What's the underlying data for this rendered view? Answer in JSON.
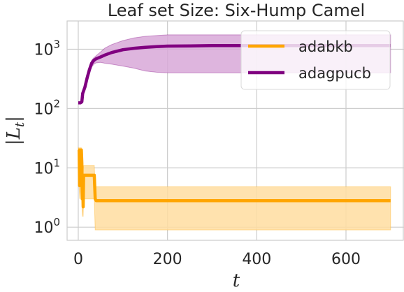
{
  "chart_data": {
    "type": "line",
    "title": "Leaf set Size: Six-Hump Camel",
    "xlabel": "t",
    "ylabel": "|L_t|",
    "x_ticks": [
      "0",
      "200",
      "400",
      "600"
    ],
    "x_tick_values": [
      0,
      200,
      400,
      600
    ],
    "y_scale": "log",
    "y_tick_exponents": [
      0,
      1,
      2,
      3
    ],
    "xlim": [
      -25,
      730
    ],
    "ylim": [
      0.6,
      3000
    ],
    "grid": true,
    "legend_position": "top-right",
    "series": [
      {
        "name": "adabkb",
        "color": "#ffa500",
        "band_color": "#ffdda0",
        "x": [
          0,
          2,
          3,
          4,
          5,
          6,
          7,
          8,
          9,
          10,
          11,
          12,
          14,
          16,
          20,
          25,
          30,
          34,
          36,
          38,
          40,
          100,
          200,
          300,
          400,
          500,
          600,
          700
        ],
        "y": [
          20,
          20,
          5,
          14,
          20,
          6,
          20,
          12,
          3,
          5,
          2.2,
          7.5,
          7.5,
          7.5,
          7.5,
          7.5,
          7.5,
          7.5,
          7.5,
          3,
          2.8,
          2.8,
          2.8,
          2.8,
          2.8,
          2.8,
          2.8,
          2.8
        ],
        "lower": [
          5,
          5,
          3,
          4,
          5,
          3,
          5,
          3,
          1.5,
          2,
          1.5,
          3,
          3,
          3,
          3,
          3,
          3,
          3,
          3,
          0.9,
          0.9,
          0.9,
          0.9,
          0.9,
          0.9,
          0.9,
          0.9,
          0.9
        ],
        "upper": [
          22,
          22,
          20,
          22,
          22,
          20,
          22,
          20,
          10,
          12,
          8,
          11,
          11,
          11,
          11,
          11,
          11,
          11,
          11,
          4.8,
          4.8,
          4.8,
          4.8,
          4.8,
          4.8,
          4.8,
          4.8,
          4.8
        ]
      },
      {
        "name": "adagpucb",
        "color": "#800080",
        "band_color": "#d8a8d8",
        "x": [
          0,
          5,
          8,
          10,
          15,
          20,
          25,
          30,
          35,
          40,
          50,
          60,
          75,
          100,
          125,
          150,
          175,
          200,
          250,
          300,
          400,
          500,
          600,
          700
        ],
        "y": [
          125,
          125,
          130,
          180,
          230,
          330,
          450,
          580,
          650,
          690,
          740,
          800,
          880,
          980,
          1040,
          1080,
          1110,
          1130,
          1140,
          1150,
          1150,
          1150,
          1150,
          1150
        ],
        "lower": [
          125,
          125,
          125,
          160,
          200,
          280,
          380,
          500,
          560,
          590,
          600,
          580,
          560,
          520,
          480,
          430,
          410,
          400,
          400,
          400,
          400,
          400,
          400,
          400
        ],
        "upper": [
          125,
          125,
          135,
          200,
          260,
          380,
          520,
          650,
          720,
          780,
          900,
          1050,
          1200,
          1400,
          1550,
          1650,
          1700,
          1750,
          1750,
          1750,
          1750,
          1750,
          1750,
          1750
        ]
      }
    ]
  }
}
